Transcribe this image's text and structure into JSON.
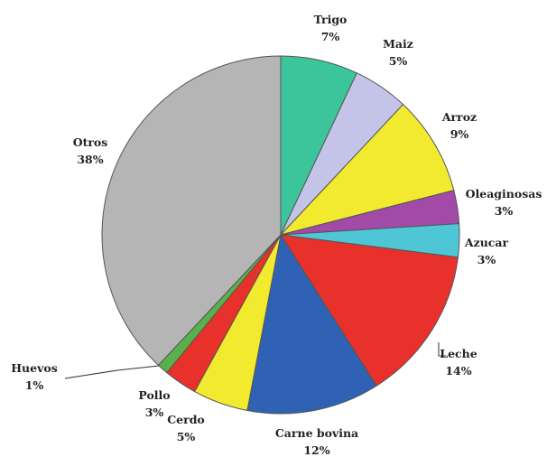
{
  "chart_data": {
    "type": "pie",
    "title": "",
    "slices": [
      {
        "label": "Trigo",
        "value": 7,
        "value_label": "7%",
        "color": "#3cc49a"
      },
      {
        "label": "Maiz",
        "value": 5,
        "value_label": "5%",
        "color": "#c4c4e8"
      },
      {
        "label": "Arroz",
        "value": 9,
        "value_label": "9%",
        "color": "#f2ea2e"
      },
      {
        "label": "Oleaginosas",
        "value": 3,
        "value_label": "3%",
        "color": "#a24aa8"
      },
      {
        "label": "Azucar",
        "value": 3,
        "value_label": "3%",
        "color": "#4fc6d6"
      },
      {
        "label": "Leche",
        "value": 14,
        "value_label": "14%",
        "color": "#e8312a"
      },
      {
        "label": "Carne bovina",
        "value": 12,
        "value_label": "12%",
        "color": "#2f62b4"
      },
      {
        "label": "Cerdo",
        "value": 5,
        "value_label": "5%",
        "color": "#f2ea2e"
      },
      {
        "label": "Pollo",
        "value": 3,
        "value_label": "3%",
        "color": "#e8312a"
      },
      {
        "label": "Huevos",
        "value": 1,
        "value_label": "1%",
        "color": "#5ab04a"
      },
      {
        "label": "Otros",
        "value": 38,
        "value_label": "38%",
        "color": "#b5b5b5"
      }
    ],
    "start": "12 o'clock",
    "direction": "clockwise",
    "legend": "none"
  }
}
